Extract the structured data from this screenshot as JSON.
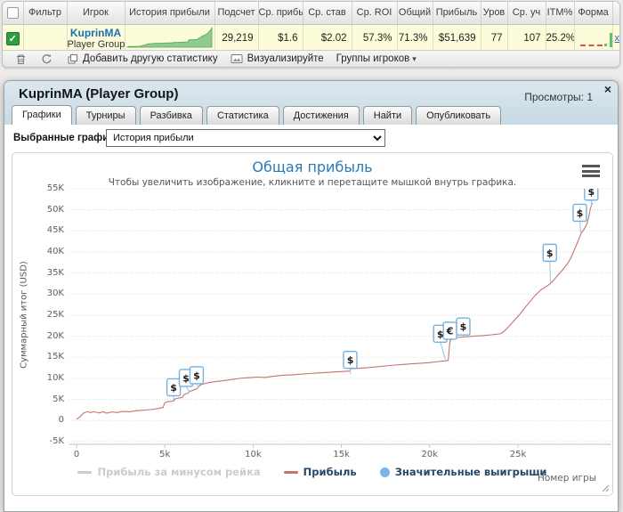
{
  "stats_table": {
    "headers": [
      "Фильтр",
      "Игрок",
      "История прибыли",
      "Подсчет",
      "Ср. прибы",
      "Ср. став",
      "Ср. ROI",
      "Общий",
      "Прибыль",
      "Уров",
      "Ср. уч",
      "ITM%",
      "Форма"
    ],
    "row": {
      "player_name": "KuprinMA",
      "player_type": "Player Group",
      "count": "29,219",
      "avg_profit": "$1.6",
      "avg_stake": "$2.02",
      "avg_roi": "57.3%",
      "overall": "71.3%",
      "profit": "$51,639",
      "level": "77",
      "avg_entrants": "107",
      "itm": "25.2%",
      "row_link_label": "x"
    },
    "toolbar": {
      "add_stat": "Добавить другую статистику",
      "visualize": "Визуализируйте",
      "groups": "Группы игроков",
      "groups_caret": "▾"
    }
  },
  "panel": {
    "title": "KuprinMA (Player Group)",
    "views_label": "Просмотры: 1",
    "close_glyph": "×",
    "tabs": [
      {
        "label": "Графики",
        "active": true
      },
      {
        "label": "Турниры",
        "active": false
      },
      {
        "label": "Разбивка",
        "active": false
      },
      {
        "label": "Статистика",
        "active": false
      },
      {
        "label": "Достижения",
        "active": false
      },
      {
        "label": "Найти",
        "active": false
      },
      {
        "label": "Опубликовать",
        "active": false
      }
    ],
    "selected_graphs_label": "Выбранные графики:",
    "graph_select_value": "История прибыли"
  },
  "chart_data": {
    "type": "line",
    "title": "Общая прибыль",
    "subtitle": "Чтобы увеличить изображение, кликните и перетащите мышкой внутрь графика.",
    "ylabel": "Суммарный итог (USD)",
    "xlabel": "Номер игры",
    "xlim": [
      0,
      30000
    ],
    "ylim": [
      -5000,
      55000
    ],
    "grid": "horizontal-dotted",
    "legend_position": "bottom",
    "yticks": [
      {
        "v": 55000,
        "label": "55K"
      },
      {
        "v": 50000,
        "label": "50K"
      },
      {
        "v": 45000,
        "label": "45K"
      },
      {
        "v": 40000,
        "label": "40K"
      },
      {
        "v": 35000,
        "label": "35K"
      },
      {
        "v": 30000,
        "label": "30K"
      },
      {
        "v": 25000,
        "label": "25K"
      },
      {
        "v": 20000,
        "label": "20K"
      },
      {
        "v": 15000,
        "label": "15K"
      },
      {
        "v": 10000,
        "label": "10K"
      },
      {
        "v": 5000,
        "label": "5K"
      },
      {
        "v": 0,
        "label": "0"
      },
      {
        "v": -5000,
        "label": "-5K"
      }
    ],
    "xticks": [
      {
        "v": 0,
        "label": "0"
      },
      {
        "v": 5000,
        "label": "5k"
      },
      {
        "v": 10000,
        "label": "10k"
      },
      {
        "v": 15000,
        "label": "15k"
      },
      {
        "v": 20000,
        "label": "20k"
      },
      {
        "v": 25000,
        "label": "25k"
      }
    ],
    "legend": [
      {
        "label": "Прибыль за минусом рейка",
        "marker": "dash",
        "color": "#cccccc",
        "text_color": "#cccccc",
        "disabled": true
      },
      {
        "label": "Прибыль",
        "marker": "dash",
        "color": "#c4746d",
        "text_color": "#25476a",
        "disabled": false
      },
      {
        "label": "Значительные выигрыши",
        "marker": "circle",
        "color": "#7cb5ec",
        "text_color": "#25476a",
        "disabled": false
      }
    ],
    "series": [
      {
        "name": "Прибыль",
        "color": "#c4746d",
        "points": [
          [
            0,
            300
          ],
          [
            200,
            900
          ],
          [
            400,
            1800
          ],
          [
            600,
            2100
          ],
          [
            800,
            1900
          ],
          [
            1000,
            2100
          ],
          [
            1300,
            1800
          ],
          [
            1500,
            2100
          ],
          [
            1700,
            1750
          ],
          [
            2000,
            2050
          ],
          [
            2300,
            1900
          ],
          [
            2600,
            2150
          ],
          [
            3000,
            2100
          ],
          [
            3400,
            2350
          ],
          [
            3800,
            2450
          ],
          [
            4200,
            2600
          ],
          [
            4600,
            2850
          ],
          [
            4900,
            3100
          ],
          [
            5000,
            4200
          ],
          [
            5150,
            4450
          ],
          [
            5350,
            4550
          ],
          [
            5500,
            4700
          ],
          [
            5600,
            5200
          ],
          [
            5800,
            5350
          ],
          [
            6000,
            5500
          ],
          [
            6100,
            6200
          ],
          [
            6300,
            6450
          ],
          [
            6400,
            6900
          ],
          [
            6600,
            7200
          ],
          [
            6800,
            7500
          ],
          [
            7000,
            8400
          ],
          [
            7200,
            8700
          ],
          [
            7500,
            9000
          ],
          [
            7800,
            9200
          ],
          [
            8200,
            9400
          ],
          [
            8700,
            9700
          ],
          [
            9200,
            10000
          ],
          [
            9700,
            10150
          ],
          [
            10200,
            10300
          ],
          [
            10700,
            10250
          ],
          [
            11200,
            10550
          ],
          [
            11700,
            10750
          ],
          [
            12200,
            10850
          ],
          [
            12700,
            11000
          ],
          [
            13200,
            11150
          ],
          [
            13700,
            11300
          ],
          [
            14200,
            11400
          ],
          [
            14700,
            11550
          ],
          [
            15200,
            11650
          ],
          [
            15450,
            11750
          ],
          [
            15550,
            12300
          ],
          [
            16000,
            12400
          ],
          [
            16500,
            12550
          ],
          [
            17000,
            12750
          ],
          [
            17500,
            12950
          ],
          [
            18000,
            13150
          ],
          [
            18500,
            13300
          ],
          [
            19000,
            13450
          ],
          [
            19500,
            13600
          ],
          [
            20000,
            13750
          ],
          [
            20500,
            14000
          ],
          [
            20900,
            14150
          ],
          [
            21050,
            14250
          ],
          [
            21150,
            18900
          ],
          [
            21300,
            19500
          ],
          [
            21600,
            19700
          ],
          [
            22000,
            19850
          ],
          [
            22500,
            20000
          ],
          [
            23000,
            20150
          ],
          [
            23500,
            20350
          ],
          [
            24000,
            20600
          ],
          [
            24200,
            21100
          ],
          [
            24500,
            22400
          ],
          [
            24800,
            23800
          ],
          [
            25100,
            25200
          ],
          [
            25400,
            26800
          ],
          [
            25700,
            28300
          ],
          [
            26000,
            29800
          ],
          [
            26300,
            31000
          ],
          [
            26600,
            31800
          ],
          [
            26900,
            32700
          ],
          [
            27200,
            34200
          ],
          [
            27500,
            35600
          ],
          [
            27800,
            37200
          ],
          [
            28000,
            38600
          ],
          [
            28200,
            40600
          ],
          [
            28400,
            42600
          ],
          [
            28600,
            44600
          ],
          [
            28750,
            45400
          ],
          [
            28900,
            46600
          ],
          [
            29000,
            48200
          ],
          [
            29100,
            50300
          ],
          [
            29219,
            51639
          ]
        ]
      }
    ],
    "win_markers": [
      {
        "g": 5500,
        "box_v": 7900,
        "anchor_v": 4700,
        "sym": "$"
      },
      {
        "g": 6200,
        "box_v": 10100,
        "anchor_v": 6400,
        "anchor_g": 6400,
        "sym": "$"
      },
      {
        "g": 6800,
        "box_v": 10750,
        "anchor_v": 7600,
        "anchor_g": 6900,
        "sym": "$"
      },
      {
        "g": 15500,
        "box_v": 14400,
        "anchor_v": 10800,
        "anchor_g": 15500,
        "sym": "$"
      },
      {
        "g": 20600,
        "box_v": 20600,
        "anchor_v": 14150,
        "anchor_g": 20900,
        "sym": "$"
      },
      {
        "g": 21150,
        "box_v": 21300,
        "anchor_v": 18900,
        "sym": "€"
      },
      {
        "g": 21900,
        "box_v": 22300,
        "anchor_v": 19800,
        "sym": "$"
      },
      {
        "g": 26800,
        "box_v": 39800,
        "anchor_v": 32400,
        "anchor_g": 26850,
        "sym": "$"
      },
      {
        "g": 28500,
        "box_v": 49300,
        "anchor_v": 44300,
        "anchor_g": 28550,
        "sym": "$"
      },
      {
        "g": 29150,
        "box_v": 54300,
        "anchor_v": 50800,
        "anchor_g": 29170,
        "sym": "$"
      }
    ],
    "colors": {
      "line": "#c4746d",
      "grid": "#d8d8d8",
      "axis": "#c6c6c6",
      "marker_border": "#76b0dd",
      "marker_connector": "#a9cce9",
      "title": "#2b7ab8",
      "legend_active": "#25476a",
      "legend_disabled": "#cccccc"
    }
  }
}
